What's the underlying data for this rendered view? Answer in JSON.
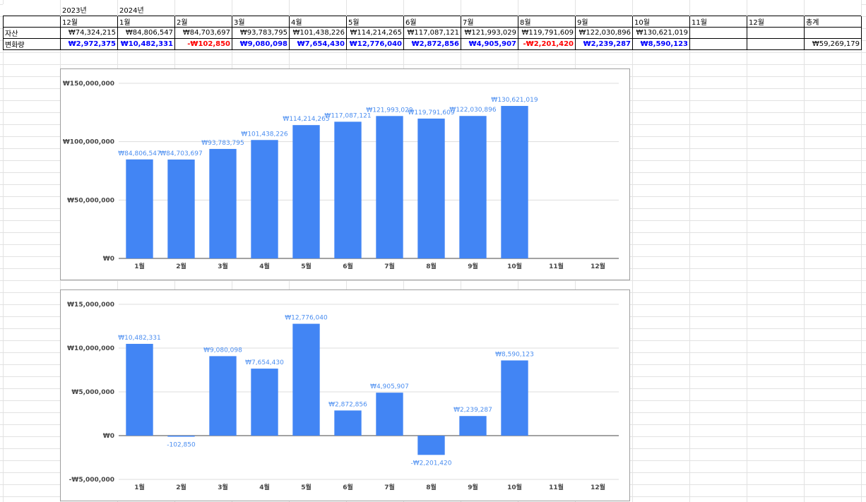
{
  "sheet": {
    "year_labels": [
      "",
      "2023년",
      "2024년"
    ],
    "months": [
      "",
      "12월",
      "1월",
      "2월",
      "3월",
      "4월",
      "5월",
      "6월",
      "7월",
      "8월",
      "9월",
      "10월",
      "11월",
      "12월",
      "총계"
    ],
    "assets": {
      "label": "자산",
      "values": [
        "₩74,324,215",
        "₩84,806,547",
        "₩84,703,697",
        "₩93,783,795",
        "₩101,438,226",
        "₩114,214,265",
        "₩117,087,121",
        "₩121,993,029",
        "₩119,791,609",
        "₩122,030,896",
        "₩130,621,019",
        "",
        "",
        ""
      ]
    },
    "change": {
      "label": "변화량",
      "values": [
        "₩2,972,375",
        "₩10,482,331",
        "-₩102,850",
        "₩9,080,098",
        "₩7,654,430",
        "₩12,776,040",
        "₩2,872,856",
        "₩4,905,907",
        "-₩2,201,420",
        "₩2,239,287",
        "₩8,590,123",
        "",
        "",
        "₩59,269,179"
      ]
    }
  },
  "colors": {
    "bar": "#4285f4",
    "data_label": "#4a8df0",
    "positive": "#0000ff",
    "negative": "#ff0000"
  },
  "chart_data": [
    {
      "type": "bar",
      "categories": [
        "1월",
        "2월",
        "3월",
        "4월",
        "5월",
        "6월",
        "7월",
        "8월",
        "9월",
        "10월",
        "11월",
        "12월"
      ],
      "values": [
        84806547,
        84703697,
        93783795,
        101438226,
        114214265,
        117087121,
        121993029,
        119791609,
        122030896,
        130621019,
        null,
        null
      ],
      "data_labels": [
        "₩84,806,547",
        "₩84,703,697",
        "₩93,783,795",
        "₩101,438,226",
        "₩114,214,265",
        "₩117,087,121",
        "₩121,993,029",
        "₩119,791,609",
        "₩122,030,896",
        "₩130,621,019",
        "",
        ""
      ],
      "y_ticks": [
        0,
        50000000,
        100000000,
        150000000
      ],
      "y_tick_labels": [
        "₩0",
        "₩50,000,000",
        "₩100,000,000",
        "₩150,000,000"
      ],
      "ylim": [
        0,
        150000000
      ],
      "grid": true,
      "legend": "none"
    },
    {
      "type": "bar",
      "categories": [
        "1월",
        "2월",
        "3월",
        "4월",
        "5월",
        "6월",
        "7월",
        "8월",
        "9월",
        "10월",
        "11월",
        "12월"
      ],
      "values": [
        10482331,
        -102850,
        9080098,
        7654430,
        12776040,
        2872856,
        4905907,
        -2201420,
        2239287,
        8590123,
        null,
        null
      ],
      "data_labels": [
        "₩10,482,331",
        "-102,850",
        "₩9,080,098",
        "₩7,654,430",
        "₩12,776,040",
        "₩2,872,856",
        "₩4,905,907",
        "-₩2,201,420",
        "₩2,239,287",
        "₩8,590,123",
        "",
        ""
      ],
      "y_ticks": [
        -5000000,
        0,
        5000000,
        10000000,
        15000000
      ],
      "y_tick_labels": [
        "-₩5,000,000",
        "₩0",
        "₩5,000,000",
        "₩10,000,000",
        "₩15,000,000"
      ],
      "ylim": [
        -5000000,
        15000000
      ],
      "grid": true,
      "legend": "none"
    }
  ]
}
